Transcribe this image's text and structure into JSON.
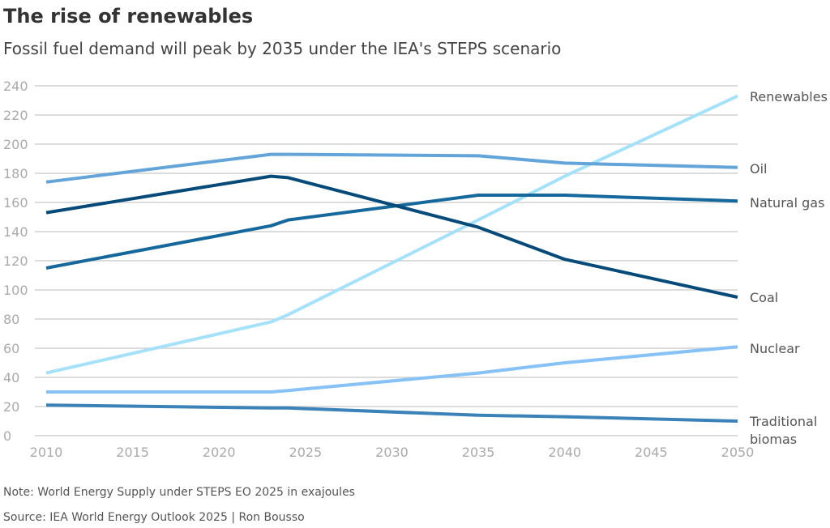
{
  "title": "The rise of renewables",
  "subtitle": "Fossil fuel demand will peak by 2035 under the IEA's STEPS scenario",
  "note": "Note: World Energy Supply under STEPS EO 2025 in exajoules",
  "source": "Source: IEA World Energy Outlook 2025 | Ron Bousso",
  "chart_data": {
    "type": "line",
    "title": "The rise of renewables",
    "xlabel": "",
    "ylabel": "",
    "xlim": [
      2010,
      2050
    ],
    "ylim": [
      0,
      240
    ],
    "xticks": [
      2010,
      2015,
      2020,
      2025,
      2030,
      2035,
      2040,
      2045,
      2050
    ],
    "yticks": [
      0,
      20,
      40,
      60,
      80,
      100,
      120,
      140,
      160,
      180,
      200,
      220,
      240
    ],
    "grid": "horizontal",
    "legend": "direct labels right",
    "series": [
      {
        "name": "Renewables",
        "color": "#a6e1fa",
        "x": [
          2010,
          2023,
          2024,
          2035,
          2040,
          2050
        ],
        "y": [
          43,
          78,
          83,
          148,
          178,
          233
        ]
      },
      {
        "name": "Oil",
        "color": "#63a4d9",
        "x": [
          2010,
          2023,
          2024,
          2035,
          2040,
          2050
        ],
        "y": [
          174,
          193,
          193,
          192,
          187,
          184
        ]
      },
      {
        "name": "Natural gas",
        "color": "#15689b",
        "x": [
          2010,
          2023,
          2024,
          2035,
          2040,
          2050
        ],
        "y": [
          115,
          144,
          148,
          165,
          165,
          161
        ]
      },
      {
        "name": "Coal",
        "color": "#054a78",
        "x": [
          2010,
          2023,
          2024,
          2035,
          2040,
          2050
        ],
        "y": [
          153,
          178,
          177,
          143,
          121,
          95
        ]
      },
      {
        "name": "Nuclear",
        "color": "#86c2f5",
        "x": [
          2010,
          2023,
          2024,
          2035,
          2040,
          2050
        ],
        "y": [
          30,
          30,
          31,
          43,
          50,
          61
        ]
      },
      {
        "name": "Traditional biomas",
        "color": "#3a82b8",
        "x": [
          2010,
          2023,
          2024,
          2035,
          2040,
          2050
        ],
        "y": [
          21,
          19,
          19,
          14,
          13,
          10
        ]
      }
    ]
  }
}
